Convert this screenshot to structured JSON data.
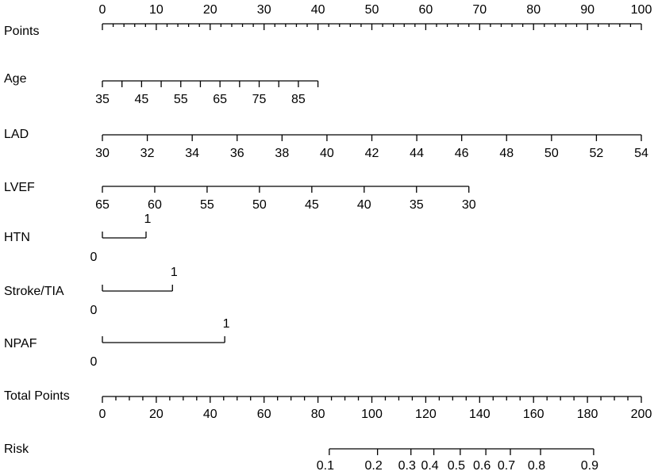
{
  "chart_data": {
    "type": "nomogram",
    "points_axis": {
      "name": "Points",
      "lim": [
        0,
        100
      ],
      "ticks": [
        0,
        10,
        20,
        30,
        40,
        50,
        60,
        70,
        80,
        90,
        100
      ],
      "minor_ticks": [
        2,
        4,
        6,
        8,
        12,
        14,
        16,
        18,
        22,
        24,
        26,
        28,
        32,
        34,
        36,
        38,
        42,
        44,
        46,
        48,
        52,
        54,
        56,
        58,
        62,
        64,
        66,
        68,
        72,
        74,
        76,
        78,
        82,
        84,
        86,
        88,
        92,
        94,
        96,
        98
      ]
    },
    "variables": [
      {
        "name": "Age",
        "lim": [
          35,
          90
        ],
        "points": [
          0,
          40
        ],
        "ticks": [
          35,
          45,
          55,
          65,
          75,
          85
        ],
        "minor_ticks": [
          40,
          50,
          60,
          70,
          80,
          90
        ]
      },
      {
        "name": "LAD",
        "lim": [
          30,
          54
        ],
        "points": [
          0,
          100
        ],
        "ticks": [
          30,
          32,
          34,
          36,
          38,
          40,
          42,
          44,
          46,
          48,
          50,
          52,
          54
        ]
      },
      {
        "name": "LVEF",
        "lim": [
          65,
          30
        ],
        "points": [
          0,
          68
        ],
        "ticks": [
          65,
          60,
          55,
          50,
          45,
          40,
          35,
          30
        ]
      },
      {
        "name": "HTN",
        "lim": [
          0,
          1
        ],
        "points": [
          0,
          8.1
        ],
        "ticks": [
          0,
          1
        ],
        "binary": true
      },
      {
        "name": "Stroke/TIA",
        "lim": [
          0,
          1
        ],
        "points": [
          0,
          13
        ],
        "ticks": [
          0,
          1
        ],
        "binary": true
      },
      {
        "name": "NPAF",
        "lim": [
          0,
          1
        ],
        "points": [
          0,
          22.7
        ],
        "ticks": [
          0,
          1
        ],
        "binary": true
      }
    ],
    "total_points": {
      "name": "Total Points",
      "lim": [
        0,
        200
      ],
      "ticks": [
        0,
        20,
        40,
        60,
        80,
        100,
        120,
        140,
        160,
        180,
        200
      ],
      "minor_ticks": [
        5,
        10,
        15,
        25,
        30,
        35,
        45,
        50,
        55,
        65,
        70,
        75,
        85,
        90,
        95,
        105,
        110,
        115,
        125,
        130,
        135,
        145,
        150,
        155,
        165,
        170,
        175,
        185,
        190,
        195
      ]
    },
    "risk": {
      "name": "Risk",
      "ticks": [
        0.1,
        0.2,
        0.3,
        0.4,
        0.5,
        0.6,
        0.7,
        0.8,
        0.9
      ],
      "total_points": [
        84.2,
        102.1,
        114.5,
        123.0,
        132.8,
        142.3,
        151.4,
        162.6,
        182.3
      ]
    }
  }
}
